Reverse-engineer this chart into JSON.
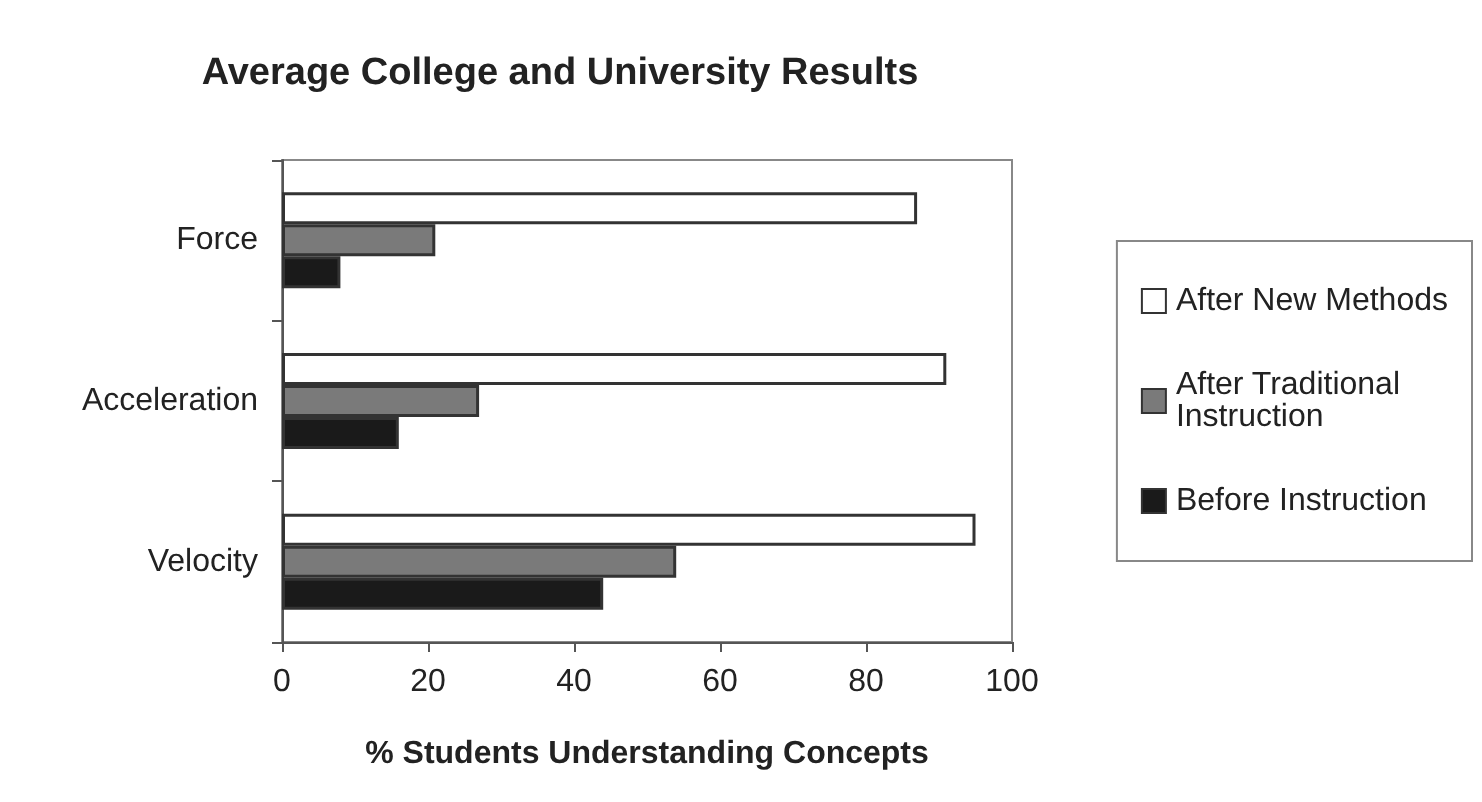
{
  "chart_data": {
    "type": "bar",
    "orientation": "horizontal",
    "title": "Average College and University Results",
    "xlabel": "% Students Understanding Concepts",
    "categories": [
      "Force",
      "Acceleration",
      "Velocity"
    ],
    "series": [
      {
        "name": "After New Methods",
        "color": "#ffffff",
        "values": [
          87,
          91,
          95
        ]
      },
      {
        "name": "After Traditional Instruction",
        "color": "#7a7a7a",
        "values": [
          21,
          27,
          54
        ]
      },
      {
        "name": "Before Instruction",
        "color": "#1a1a1a",
        "values": [
          8,
          16,
          44
        ]
      }
    ],
    "xlim": [
      0,
      100
    ],
    "xticks": [
      0,
      20,
      40,
      60,
      80,
      100
    ],
    "grid": false,
    "legend": "right"
  }
}
